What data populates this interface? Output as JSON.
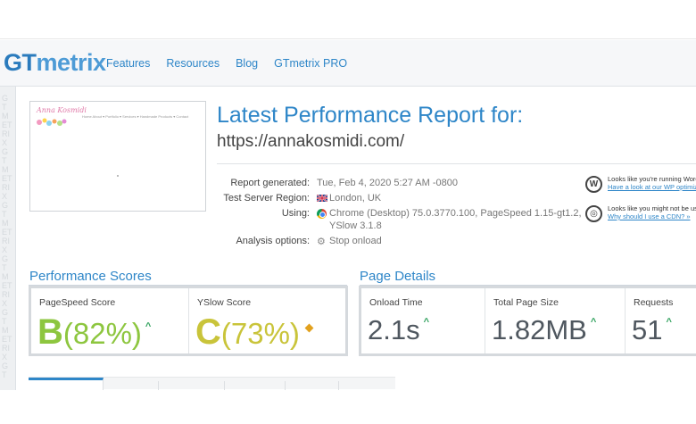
{
  "brand": {
    "gt": "GT",
    "metrix": "metrix"
  },
  "nav": [
    "Features",
    "Resources",
    "Blog",
    "GTmetrix PRO"
  ],
  "sidebar_text": "GTMETRIXGTMETRIXGTMETRIXGTMETRIXGTMETRIXGTMETRIXGTMETRIXGTMETRIXGTMETRIXGTMETRIXGTMETRIXGTMETRIX",
  "thumbnail": {
    "site_name": "Anna Kosmidi",
    "menu": "Home   About ▾   Portfolio ▾   Services ▾   Handmade Products ▾   Contact"
  },
  "report": {
    "title": "Latest Performance Report for:",
    "url": "https://annakosmidi.com/",
    "rows": [
      {
        "label": "Report generated:",
        "value": "Tue, Feb 4, 2020 5:27 AM -0800"
      },
      {
        "label": "Test Server Region:",
        "value": "London, UK"
      },
      {
        "label": "Using:",
        "value": "Chrome (Desktop) 75.0.3770.100, PageSpeed 1.15-gt1.2,",
        "value_line2": "YSlow 3.1.8"
      },
      {
        "label": "Analysis options:",
        "value": "Stop onload"
      }
    ]
  },
  "notices": [
    {
      "icon": "W",
      "text": "Looks like you're running Word",
      "link": "Have a look at our WP optimiza"
    },
    {
      "icon": "◎",
      "text": "Looks like you might not be usi",
      "link": "Why should I use a CDN? »"
    }
  ],
  "performance": {
    "heading": "Performance Scores",
    "scores": [
      {
        "label": "PageSpeed Score",
        "grade": "B",
        "value": "(82%)",
        "trend": "up",
        "color": "#8dc63f"
      },
      {
        "label": "YSlow Score",
        "grade": "C",
        "value": "(73%)",
        "trend": "neutral",
        "color": "#c9c43a"
      }
    ]
  },
  "page_details": {
    "heading": "Page Details",
    "items": [
      {
        "label": "Onload Time",
        "value": "2.1s"
      },
      {
        "label": "Total Page Size",
        "value": "1.82MB"
      },
      {
        "label": "Requests",
        "value": "51"
      }
    ]
  },
  "colors": {
    "accent": "#2e86c8",
    "up_arrow": "#2ea05b",
    "neutral": "#e2a11e"
  }
}
